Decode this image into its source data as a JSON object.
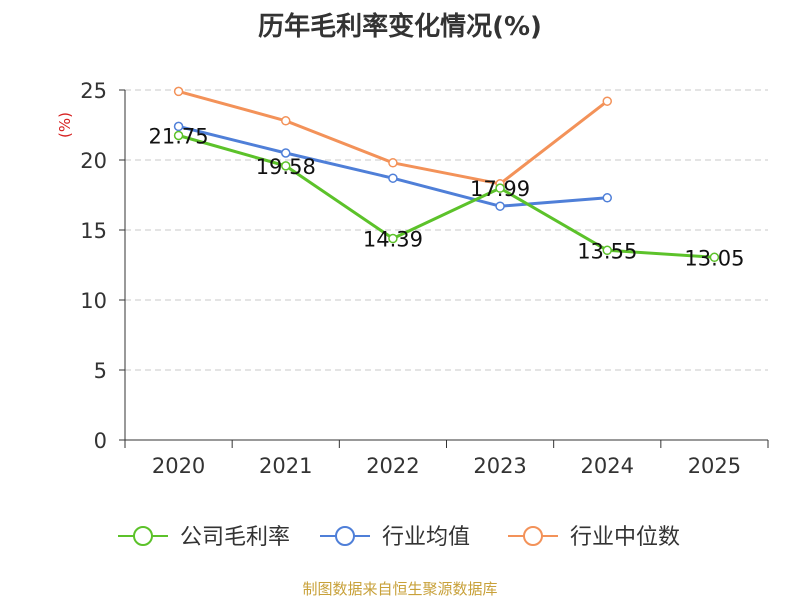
{
  "chart_data": {
    "type": "line",
    "title": "历年毛利率变化情况(%)",
    "ylabel": "(%)",
    "categories": [
      "2020",
      "2021",
      "2022",
      "2023",
      "2024",
      "2025"
    ],
    "ylim": [
      0,
      25
    ],
    "yticks": [
      0,
      5,
      10,
      15,
      20,
      25
    ],
    "grid": true,
    "legend_position": "bottom",
    "series": [
      {
        "name": "公司毛利率",
        "color": "#5cc22a",
        "show_labels": true,
        "values": [
          21.75,
          19.58,
          14.39,
          17.99,
          13.55,
          13.05
        ]
      },
      {
        "name": "行业均值",
        "color": "#4f7fd8",
        "show_labels": false,
        "values": [
          22.4,
          20.5,
          18.7,
          16.7,
          17.3,
          null
        ]
      },
      {
        "name": "行业中位数",
        "color": "#f39259",
        "show_labels": false,
        "values": [
          24.9,
          22.8,
          19.8,
          18.3,
          24.2,
          null
        ]
      }
    ]
  },
  "source_note": "制图数据来自恒生聚源数据库"
}
